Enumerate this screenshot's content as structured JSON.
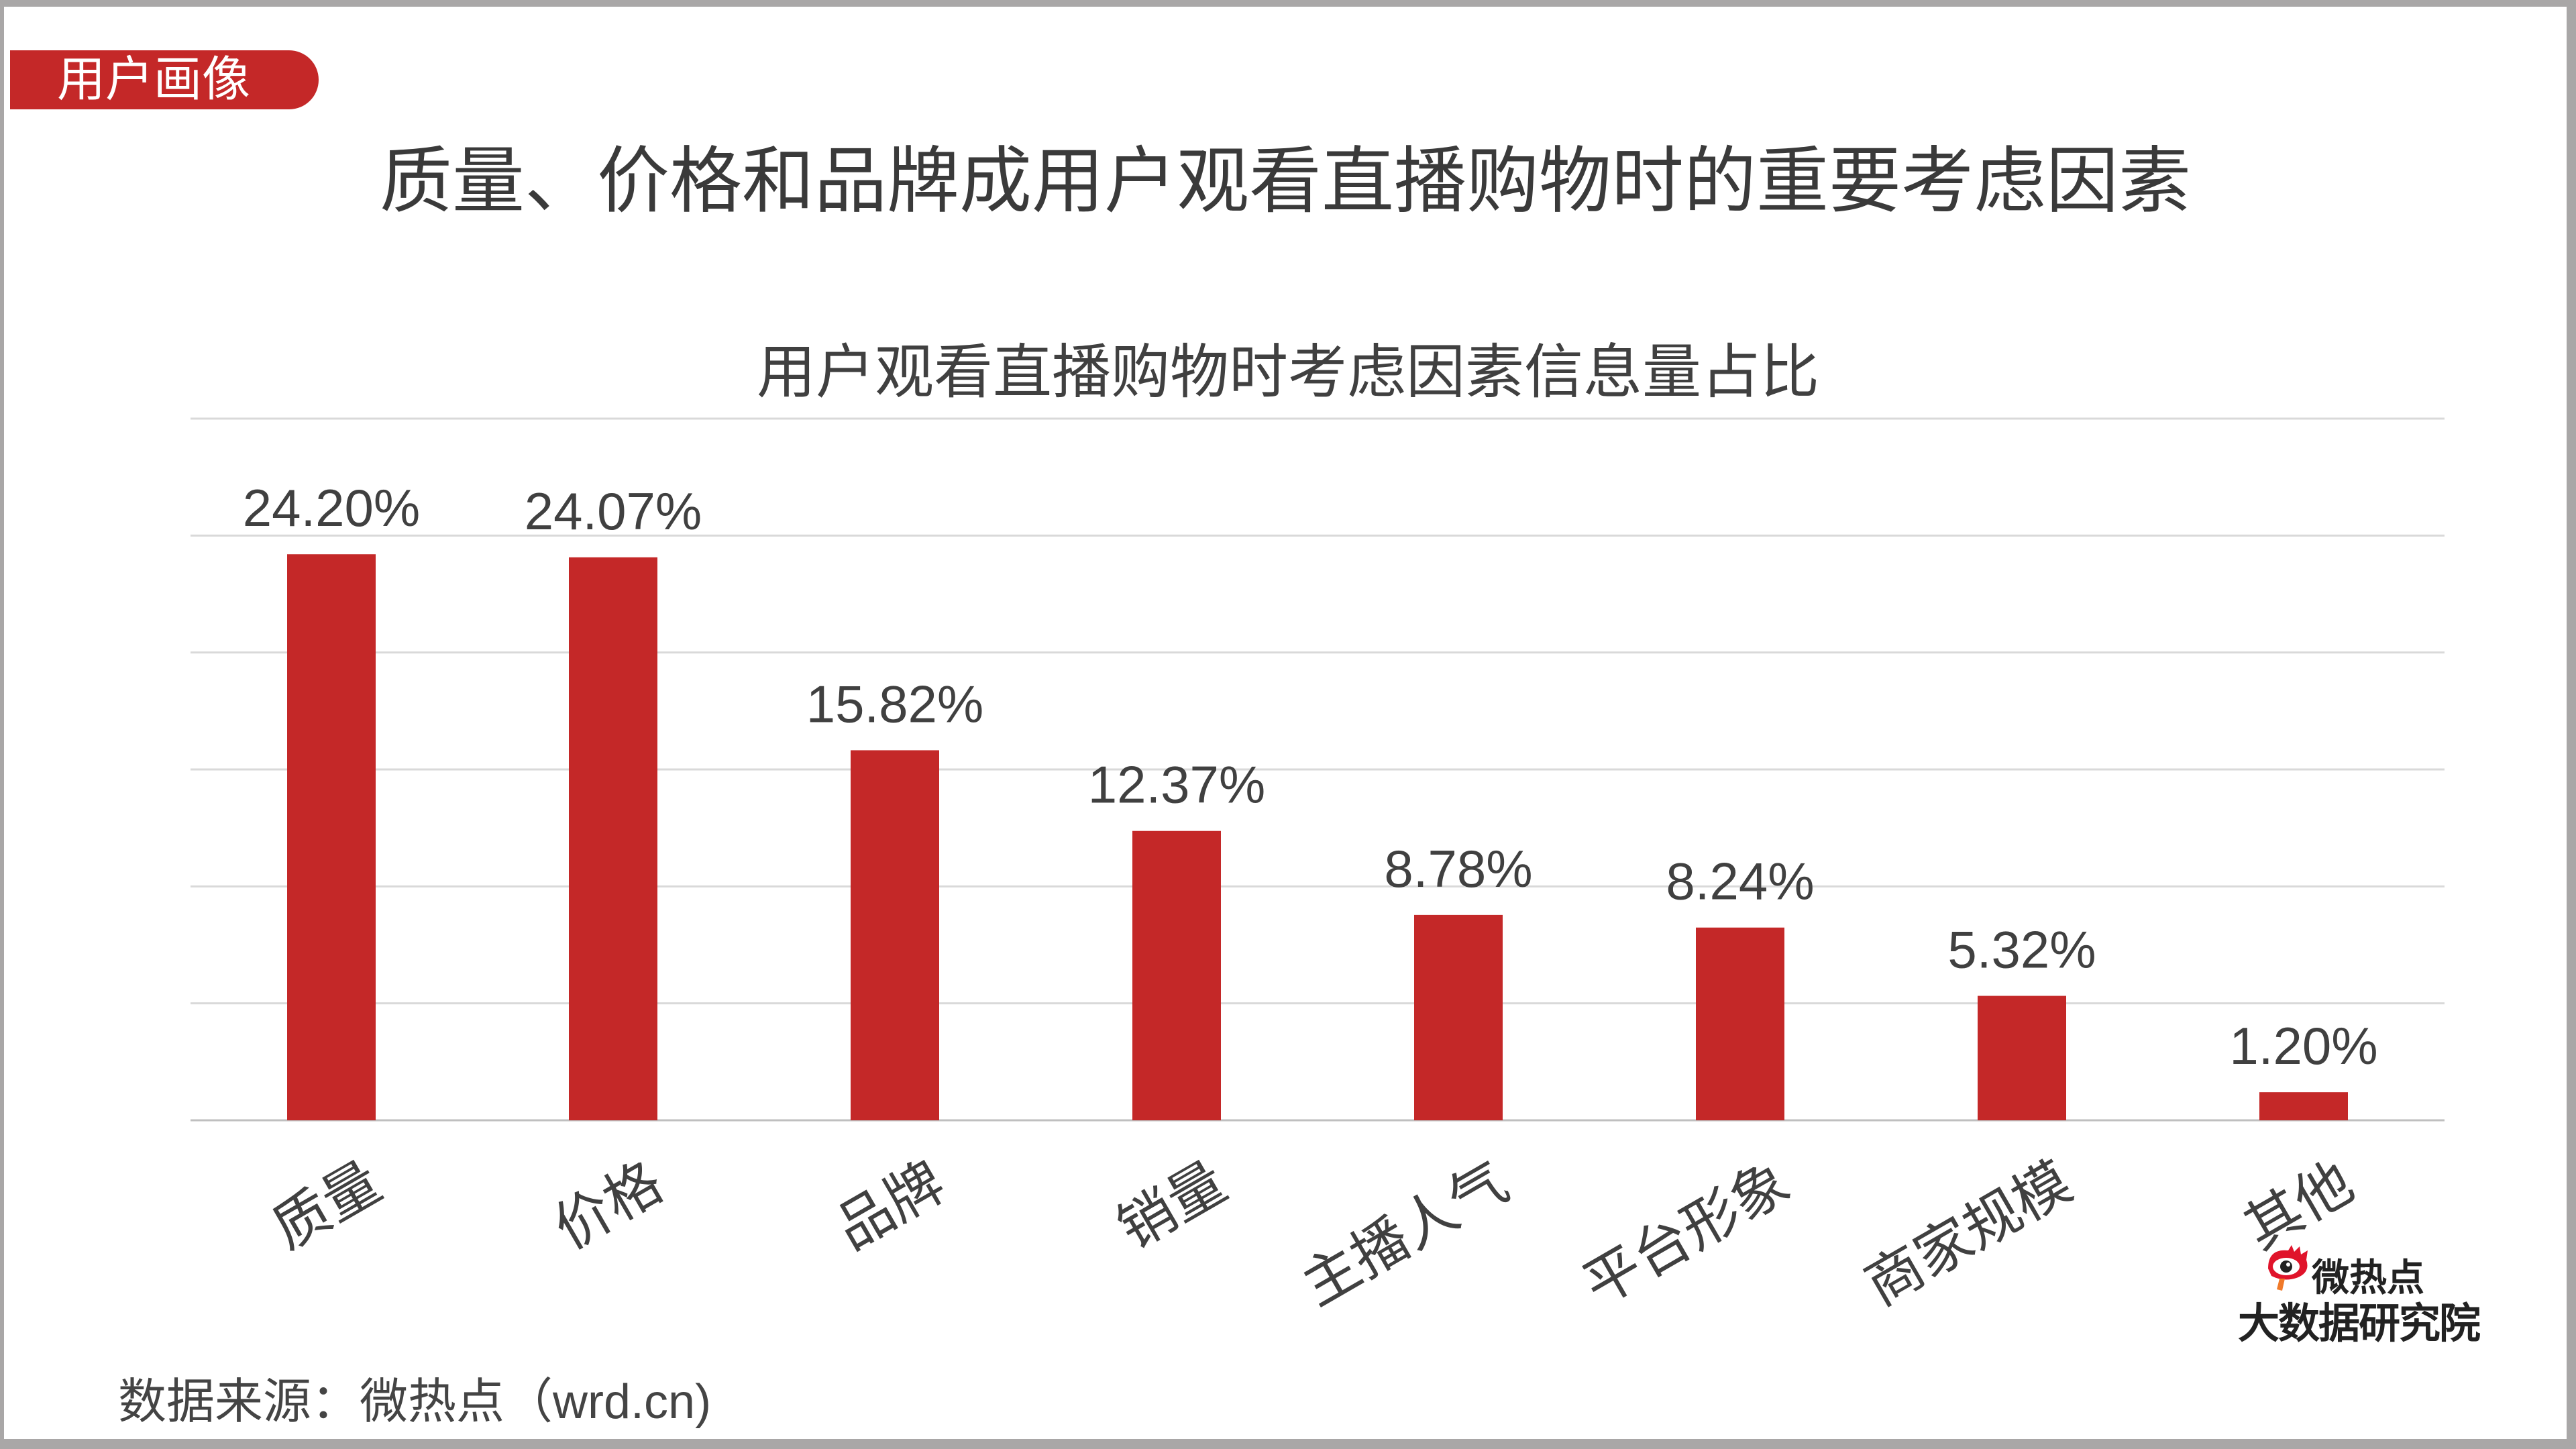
{
  "badge": "用户画像",
  "title": "质量、价格和品牌成用户观看直播购物时的重要考虑因素",
  "source": "数据来源：微热点（wrd.cn)",
  "logo": {
    "line1": "微热点",
    "line2": "大数据研究院"
  },
  "colors": {
    "bar": "#c42828",
    "grid": "#d9d9d9",
    "text": "#404040"
  },
  "chart_data": {
    "type": "bar",
    "title": "用户观看直播购物时考虑因素信息量占比",
    "categories": [
      "质量",
      "价格",
      "品牌",
      "销量",
      "主播人气",
      "平台形象",
      "商家规模",
      "其他"
    ],
    "values": [
      24.2,
      24.07,
      15.82,
      12.37,
      8.78,
      8.24,
      5.32,
      1.2
    ],
    "data_labels": [
      "24.20%",
      "24.07%",
      "15.82%",
      "12.37%",
      "8.78%",
      "8.24%",
      "5.32%",
      "1.20%"
    ],
    "ylim": [
      0,
      30
    ],
    "y_grid_step": 5,
    "grid": true,
    "xlabel": "",
    "ylabel": ""
  }
}
